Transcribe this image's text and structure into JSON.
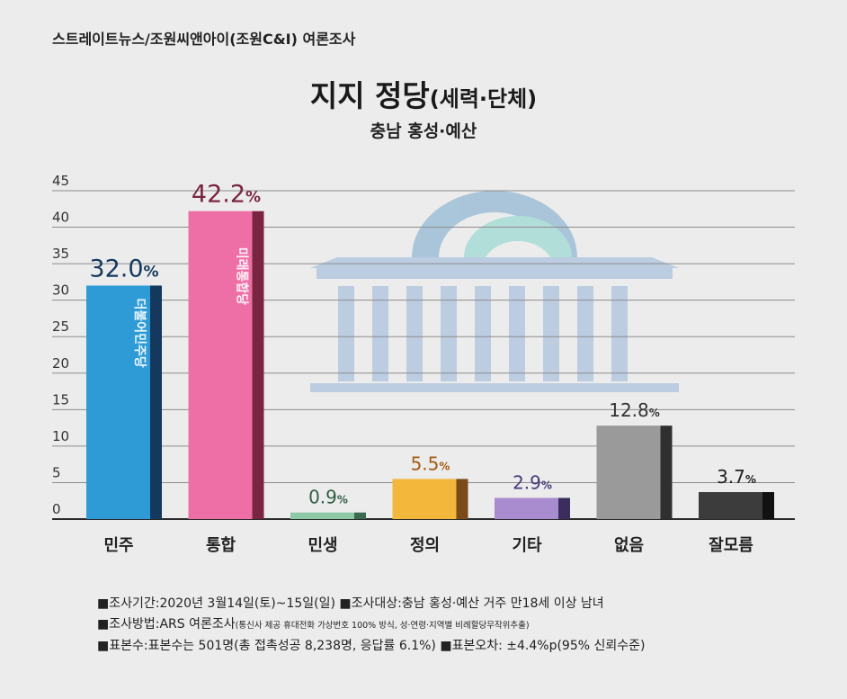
{
  "header": {
    "source": "스트레이트뉴스/조원씨앤아이(조원C&I) 여론조사",
    "title_main": "지지 정당",
    "title_paren": "(세력·단체)",
    "subtitle": "충남 홍성·예산"
  },
  "chart_data": {
    "type": "bar",
    "title": "지지 정당(세력·단체)",
    "subtitle": "충남 홍성·예산",
    "categories": [
      "민주",
      "통합",
      "민생",
      "정의",
      "기타",
      "없음",
      "잘모름"
    ],
    "values": [
      32.0,
      42.2,
      0.9,
      5.5,
      2.9,
      12.8,
      3.7
    ],
    "value_labels": [
      "32.0",
      "42.2",
      "0.9",
      "5.5",
      "2.9",
      "12.8",
      "3.7"
    ],
    "value_suffix": "%",
    "yticks": [
      "0",
      "5",
      "10",
      "15",
      "20",
      "25",
      "30",
      "35",
      "40",
      "45"
    ],
    "ylim": [
      0,
      45
    ],
    "grid": true,
    "bar_colors": [
      "#2f9bd6",
      "#ee6fa6",
      "#8cc9a4",
      "#f2b73b",
      "#a98bd0",
      "#9a9a9a",
      "#3c3c3c"
    ],
    "shade_colors": [
      "#15395e",
      "#7a2540",
      "#3b6b4e",
      "#7a4a18",
      "#3b2d5e",
      "#2f2f2f",
      "#111111"
    ],
    "label_colors": [
      "#15395e",
      "#7a2540",
      "#2f5e45",
      "#a35b12",
      "#4a3a7a",
      "#333333",
      "#222222"
    ],
    "bar_texts": [
      "더불어민주당",
      "미래통합당",
      "",
      "",
      "",
      "",
      ""
    ]
  },
  "notes": {
    "line1_a": "■조사기간:2020년 3월14일(토)~15일(일)",
    "line1_b": "■조사대상:충남 홍성·예산 거주 만18세 이상 남녀",
    "line2_a": "■조사방법:ARS 여론조사",
    "line2_b": "(통신사 제공 휴대전화 가상번호 100% 방식, 성·연령·지역별 비례할당무작위추출)",
    "line3_a": "■표본수:표본수는 501명(총 접촉성공 8,238명, 응답률 6.1%)",
    "line3_b": "■표본오차: ±4.4%p(95% 신뢰수준)"
  }
}
